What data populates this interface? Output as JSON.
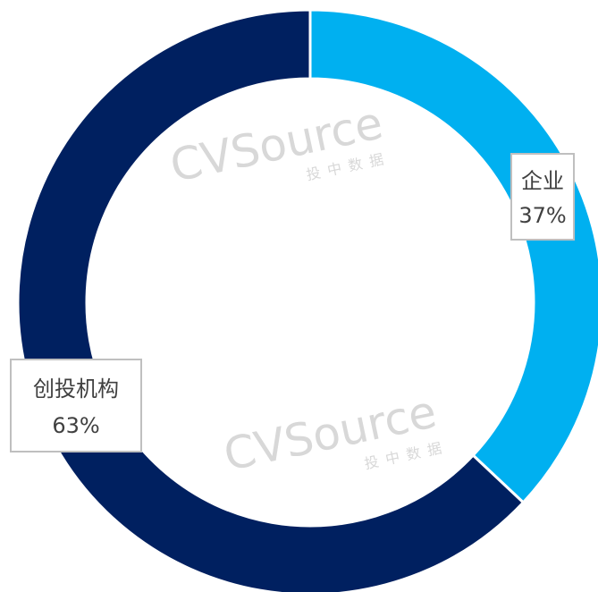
{
  "chart_data": {
    "type": "donut",
    "categories": [
      "企业",
      "创投机构"
    ],
    "values": [
      37,
      63
    ],
    "value_labels": [
      "37%",
      "63%"
    ],
    "colors": [
      "#00b0f0",
      "#002060"
    ],
    "watermark": {
      "brand": "CVSource",
      "subtitle": "投中数据"
    }
  }
}
